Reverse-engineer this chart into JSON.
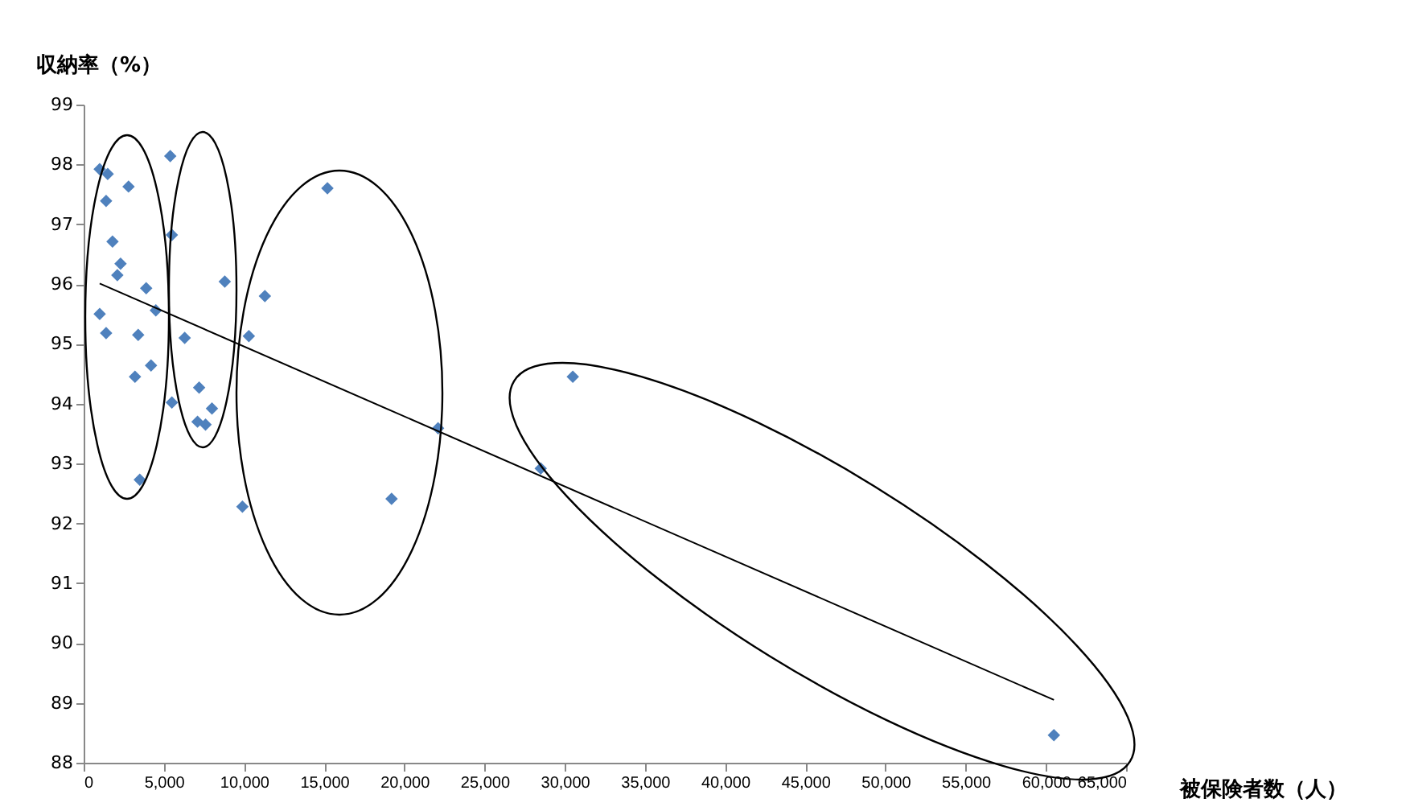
{
  "chart_data": {
    "type": "scatter",
    "xlabel": "被保険者数（人）",
    "ylabel": "収納率（%）",
    "xlim": [
      0,
      65000
    ],
    "xticks": [
      0,
      {
        "value": 5000,
        "label": "5,000"
      },
      {
        "value": 10000,
        "label": "10,000"
      },
      {
        "value": 15000,
        "label": "15,000"
      },
      {
        "value": 20000,
        "label": "20,000"
      },
      {
        "value": 25000,
        "label": "25,000"
      },
      {
        "value": 30000,
        "label": "30,000"
      },
      {
        "value": 35000,
        "label": "35,000"
      },
      {
        "value": 40000,
        "label": "40,000"
      },
      {
        "value": 45000,
        "label": "45,000"
      },
      {
        "value": 50000,
        "label": "50,000"
      },
      {
        "value": 55000,
        "label": "55,000"
      },
      {
        "value": 60000,
        "label": "60,000"
      },
      {
        "value": 65000,
        "label": "65,000"
      }
    ],
    "ylim": [
      88,
      99
    ],
    "yticks": [
      88,
      89,
      90,
      91,
      92,
      93,
      94,
      95,
      96,
      97,
      98,
      99
    ],
    "grid": false,
    "marker": "diamond",
    "series": [
      {
        "color": "#4f81bd",
        "x": [
          1000,
          1500,
          1400,
          2800,
          5400,
          1800,
          2300,
          2100,
          3900,
          5500,
          1000,
          4500,
          1400,
          3400,
          6300,
          3200,
          4200,
          5500,
          7200,
          7100,
          7600,
          8000,
          3500,
          8800,
          11300,
          10300,
          9900,
          15200,
          22100,
          19200,
          28500,
          30500,
          60500
        ],
        "values": [
          97.92,
          97.84,
          97.39,
          97.63,
          98.14,
          96.71,
          96.34,
          96.15,
          95.93,
          96.82,
          95.5,
          95.56,
          95.18,
          95.15,
          95.1,
          94.45,
          94.64,
          94.02,
          94.27,
          93.7,
          93.65,
          93.92,
          92.73,
          96.04,
          95.8,
          95.13,
          92.28,
          97.6,
          93.59,
          92.41,
          92.92,
          94.45,
          88.46
        ]
      },
      {
        "type": "line",
        "color": "#000000",
        "marker": "none",
        "x": [
          1000,
          60500
        ],
        "values": [
          96.01,
          89.05
        ]
      }
    ]
  }
}
